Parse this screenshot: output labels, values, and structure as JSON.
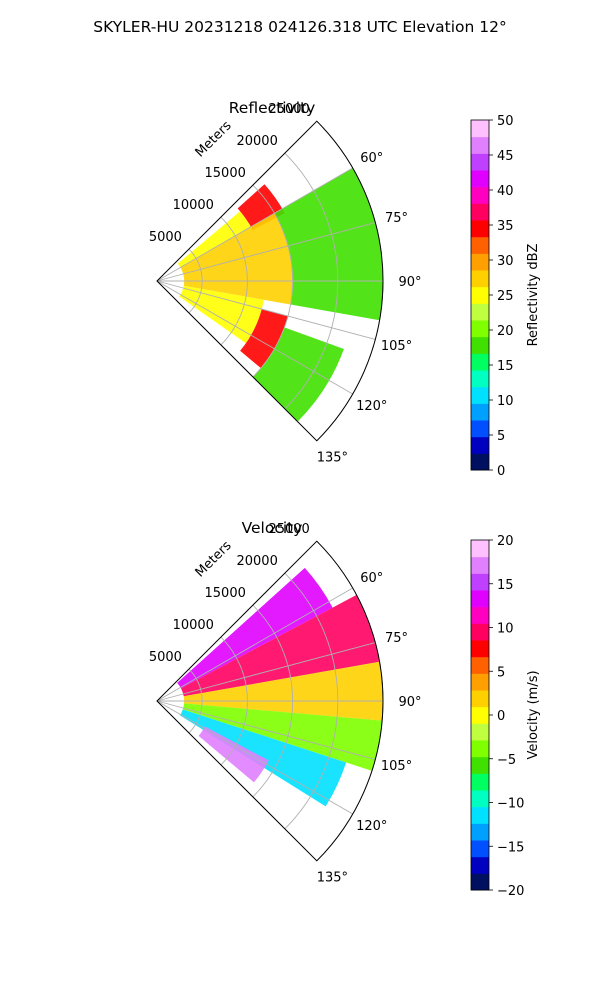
{
  "figure_title": "SKYLER-HU  20231218  024126.318 UTC Elevation 12°",
  "chart_data": [
    {
      "type": "polar-sector",
      "title": "Reflectivity",
      "radial_axis_label": "Meters",
      "radial_ticks": [
        5000,
        10000,
        15000,
        20000,
        25000
      ],
      "radial_tick_labels": [
        "5000",
        "10000",
        "15000",
        "20000",
        "25000"
      ],
      "rlim": [
        0,
        25000
      ],
      "theta_ticks_deg": [
        60,
        75,
        90,
        105,
        120,
        135
      ],
      "theta_tick_labels": [
        "60°",
        "75°",
        "90°",
        "105°",
        "120°",
        "135°"
      ],
      "theta_range_deg": [
        45,
        135
      ],
      "grid": true,
      "colorbar": {
        "label": "Reflectivity dBZ",
        "vmin": 0,
        "vmax": 50,
        "ticks": [
          0,
          5,
          10,
          15,
          20,
          25,
          30,
          35,
          40,
          45,
          50
        ],
        "tick_labels": [
          "0",
          "5",
          "10",
          "15",
          "20",
          "25",
          "30",
          "35",
          "40",
          "45",
          "50"
        ],
        "colors": [
          "#001060",
          "#0000c0",
          "#0050ff",
          "#00a0ff",
          "#00e0ff",
          "#00ffc0",
          "#00ff60",
          "#40e000",
          "#80ff00",
          "#c0ff40",
          "#ffff00",
          "#ffd000",
          "#ffa000",
          "#ff6000",
          "#ff0000",
          "#ff0060",
          "#ff00c0",
          "#e000ff",
          "#c040ff",
          "#e080ff",
          "#ffc0ff"
        ]
      },
      "field_summary": [
        {
          "az_from": 50,
          "az_to": 60,
          "range_from": 3000,
          "range_to": 12000,
          "value": 26
        },
        {
          "az_from": 48,
          "az_to": 62,
          "range_from": 12000,
          "range_to": 16000,
          "value": 34
        },
        {
          "az_from": 60,
          "az_to": 100,
          "range_from": 3000,
          "range_to": 15000,
          "value": 27
        },
        {
          "az_from": 60,
          "az_to": 100,
          "range_from": 15000,
          "range_to": 25000,
          "value": 18
        },
        {
          "az_from": 100,
          "az_to": 125,
          "range_from": 3000,
          "range_to": 12000,
          "value": 26
        },
        {
          "az_from": 105,
          "az_to": 130,
          "range_from": 12000,
          "range_to": 15000,
          "value": 34
        },
        {
          "az_from": 110,
          "az_to": 135,
          "range_from": 15000,
          "range_to": 22000,
          "value": 19
        }
      ]
    },
    {
      "type": "polar-sector",
      "title": "Velocity",
      "radial_axis_label": "Meters",
      "radial_ticks": [
        5000,
        10000,
        15000,
        20000,
        25000
      ],
      "radial_tick_labels": [
        "5000",
        "10000",
        "15000",
        "20000",
        "25000"
      ],
      "rlim": [
        0,
        25000
      ],
      "theta_ticks_deg": [
        60,
        75,
        90,
        105,
        120,
        135
      ],
      "theta_tick_labels": [
        "60°",
        "75°",
        "90°",
        "105°",
        "120°",
        "135°"
      ],
      "theta_range_deg": [
        45,
        135
      ],
      "grid": true,
      "colorbar": {
        "label": "Velocity (m/s)",
        "vmin": -20,
        "vmax": 20,
        "ticks": [
          -20,
          -15,
          -10,
          -5,
          0,
          5,
          10,
          15,
          20
        ],
        "tick_labels": [
          "−20",
          "−15",
          "−10",
          "−5",
          "0",
          "5",
          "10",
          "15",
          "20"
        ],
        "colors": [
          "#001060",
          "#0000c0",
          "#0050ff",
          "#00a0ff",
          "#00e0ff",
          "#00ffc0",
          "#00ff60",
          "#40e000",
          "#80ff00",
          "#c0ff40",
          "#ffff00",
          "#ffd000",
          "#ffa000",
          "#ff6000",
          "#ff0000",
          "#ff0060",
          "#ff00c0",
          "#e000ff",
          "#c040ff",
          "#e080ff",
          "#ffc0ff"
        ]
      },
      "field_summary": [
        {
          "az_from": 48,
          "az_to": 62,
          "range_from": 3000,
          "range_to": 22000,
          "value": 14
        },
        {
          "az_from": 62,
          "az_to": 80,
          "range_from": 3000,
          "range_to": 25000,
          "value": 9
        },
        {
          "az_from": 80,
          "az_to": 95,
          "range_from": 3000,
          "range_to": 25000,
          "value": 2
        },
        {
          "az_from": 95,
          "az_to": 108,
          "range_from": 3000,
          "range_to": 25000,
          "value": -4
        },
        {
          "az_from": 108,
          "az_to": 122,
          "range_from": 3000,
          "range_to": 22000,
          "value": -11
        },
        {
          "az_from": 118,
          "az_to": 130,
          "range_from": 6000,
          "range_to": 14000,
          "value": 17
        }
      ]
    }
  ]
}
